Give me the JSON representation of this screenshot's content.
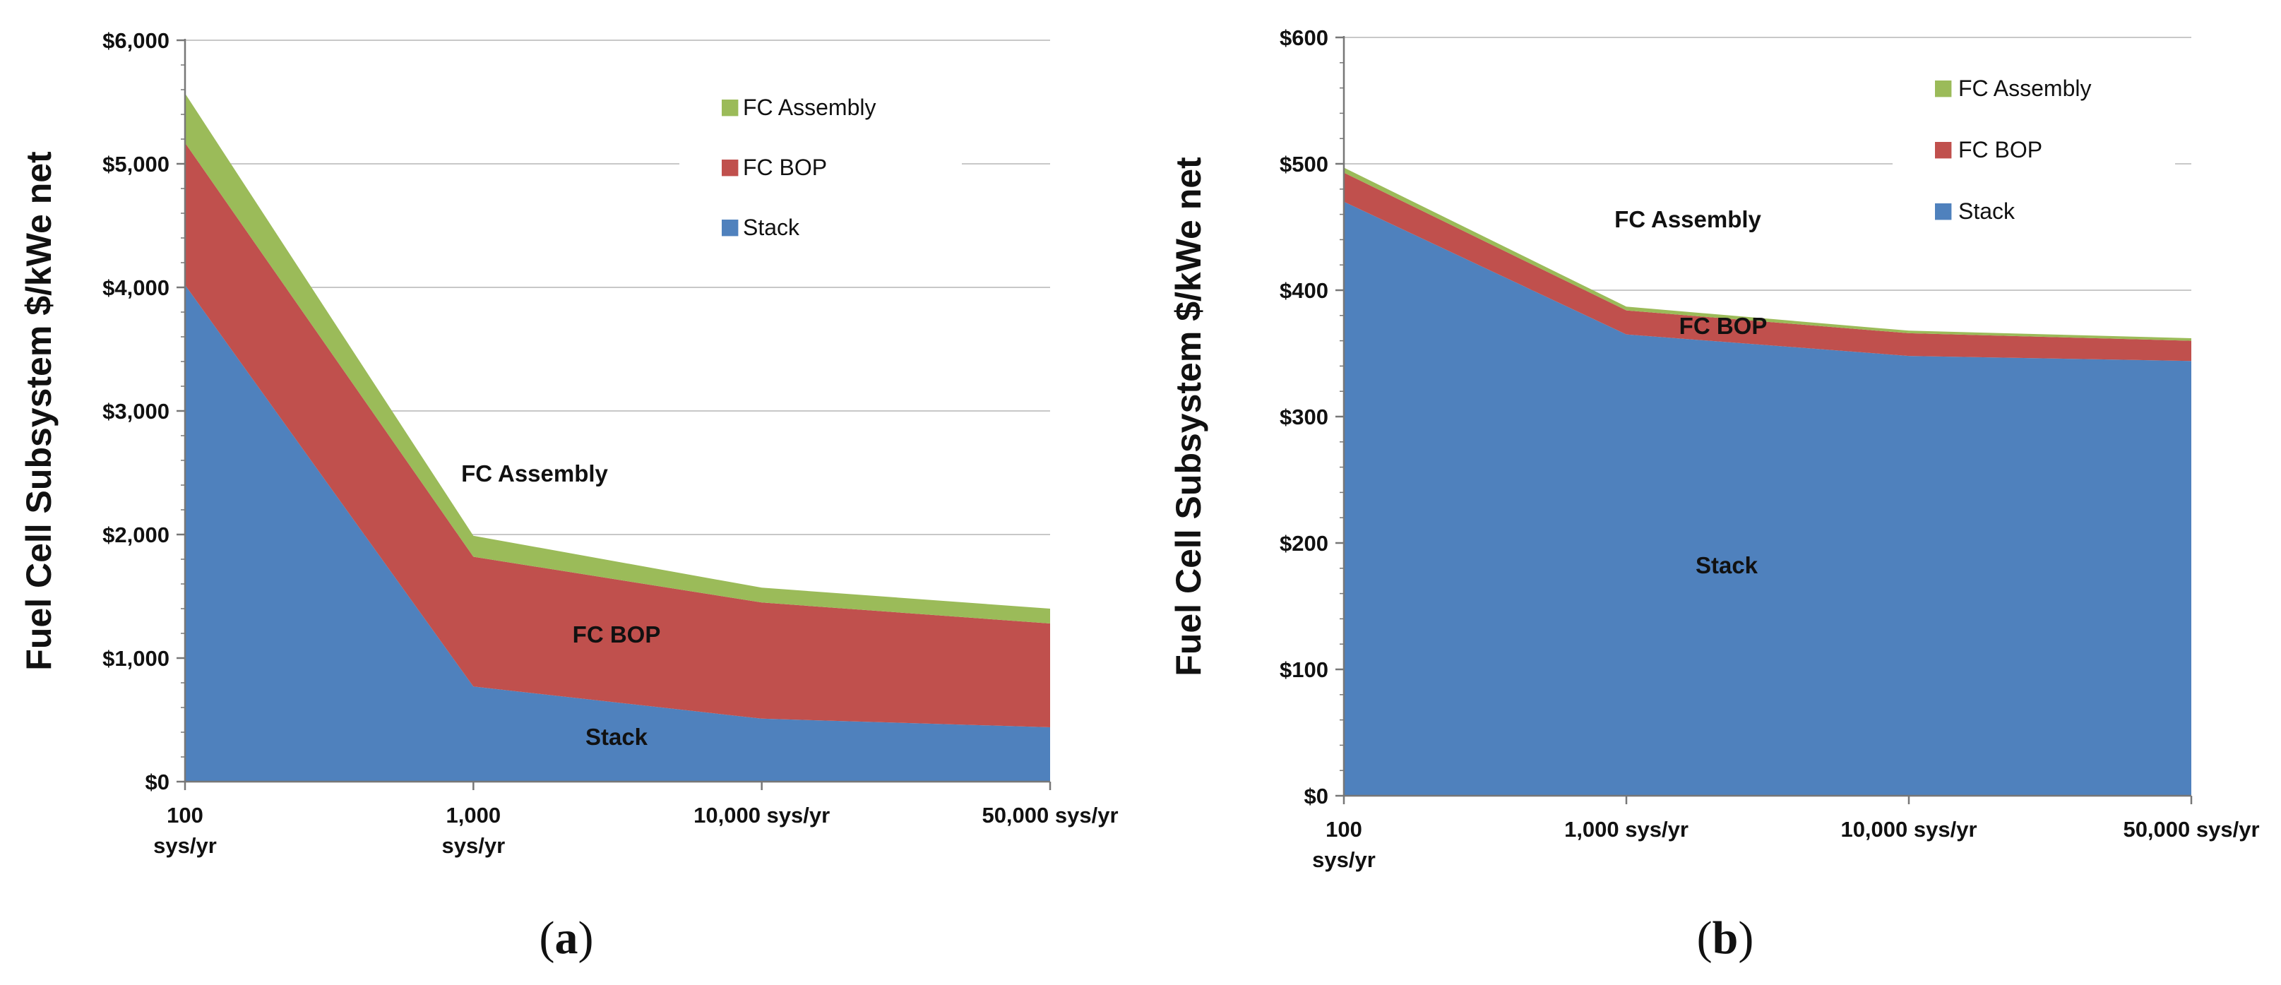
{
  "chart_data": [
    {
      "type": "area",
      "stacked": true,
      "panel_caption": "(a)",
      "ylabel": "Fuel Cell Subsystem $/kWe net",
      "xlabel": "",
      "categories": [
        "100 sys/yr",
        "1,000 sys/yr",
        "10,000 sys/yr",
        "50,000 sys/yr"
      ],
      "tick_labels": [
        [
          "100",
          "sys/yr"
        ],
        [
          "1,000",
          "sys/yr"
        ],
        [
          "10,000 sys/yr"
        ],
        [
          "50,000 sys/yr"
        ]
      ],
      "ylim": [
        0,
        6000
      ],
      "yticks": [
        0,
        1000,
        2000,
        3000,
        4000,
        5000,
        6000
      ],
      "ytick_labels": [
        "$0",
        "$1,000",
        "$2,000",
        "$3,000",
        "$4,000",
        "$5,000",
        "$6,000"
      ],
      "grid": true,
      "legend_position": "top-right",
      "series": [
        {
          "name": "Stack",
          "color": "#4f81bd",
          "values": [
            4020,
            770,
            510,
            440
          ]
        },
        {
          "name": "FC BOP",
          "color": "#c0504d",
          "values": [
            1150,
            1050,
            940,
            840
          ]
        },
        {
          "name": "FC Assembly",
          "color": "#9bbb59",
          "values": [
            400,
            170,
            120,
            120
          ]
        }
      ],
      "legend": [
        "FC Assembly",
        "FC BOP",
        "Stack"
      ],
      "annotations": [
        "FC Assembly",
        "FC BOP",
        "Stack"
      ]
    },
    {
      "type": "area",
      "stacked": true,
      "panel_caption": "(b)",
      "ylabel": "Fuel Cell Subsystem $/kWe net",
      "xlabel": "",
      "categories": [
        "100 sys/yr",
        "1,000 sys/yr",
        "10,000 sys/yr",
        "50,000 sys/yr"
      ],
      "tick_labels": [
        [
          "100",
          "sys/yr"
        ],
        [
          "1,000 sys/yr"
        ],
        [
          "10,000 sys/yr"
        ],
        [
          "50,000 sys/yr"
        ]
      ],
      "ylim": [
        0,
        600
      ],
      "yticks": [
        0,
        100,
        200,
        300,
        400,
        500,
        600
      ],
      "ytick_labels": [
        "$0",
        "$100",
        "$200",
        "$300",
        "$400",
        "$500",
        "$600"
      ],
      "grid": true,
      "legend_position": "top-right",
      "series": [
        {
          "name": "Stack",
          "color": "#4f81bd",
          "values": [
            470,
            365,
            348,
            344
          ]
        },
        {
          "name": "FC BOP",
          "color": "#c0504d",
          "values": [
            23,
            19,
            18,
            16
          ]
        },
        {
          "name": "FC Assembly",
          "color": "#9bbb59",
          "values": [
            4,
            3,
            2,
            2
          ]
        }
      ],
      "legend": [
        "FC Assembly",
        "FC BOP",
        "Stack"
      ],
      "annotations": [
        "FC Assembly",
        "FC BOP",
        "Stack"
      ]
    }
  ]
}
